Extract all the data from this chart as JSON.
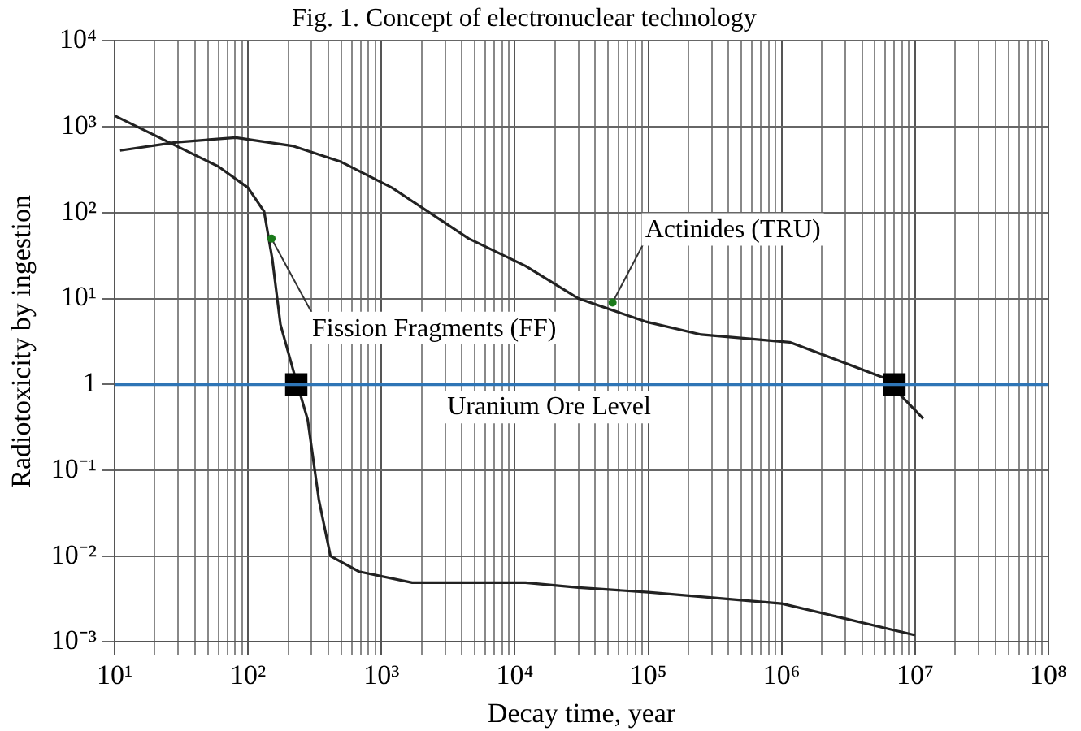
{
  "chart_data": {
    "type": "line",
    "title": "Fig. 1. Concept of electronuclear technology",
    "xlabel": "Decay time, year",
    "ylabel": "Radiotoxicity by ingestion",
    "log": "xy",
    "grid": true,
    "legend": false,
    "marker": "none",
    "line_style": "solid",
    "xlim": [
      10,
      100000000
    ],
    "ylim": [
      0.001,
      10000
    ],
    "xticks": [
      {
        "value": 10,
        "label": "10¹"
      },
      {
        "value": 20,
        "label": null
      },
      {
        "value": 30,
        "label": null
      },
      {
        "value": 40,
        "label": null
      },
      {
        "value": 50,
        "label": null
      },
      {
        "value": 60,
        "label": null
      },
      {
        "value": 70,
        "label": null
      },
      {
        "value": 80,
        "label": null
      },
      {
        "value": 90,
        "label": null
      },
      {
        "value": 100,
        "label": "10²"
      },
      {
        "value": 200,
        "label": null
      },
      {
        "value": 300,
        "label": null
      },
      {
        "value": 400,
        "label": null
      },
      {
        "value": 500,
        "label": null
      },
      {
        "value": 600,
        "label": null
      },
      {
        "value": 700,
        "label": null
      },
      {
        "value": 800,
        "label": null
      },
      {
        "value": 900,
        "label": null
      },
      {
        "value": 1000,
        "label": "10³"
      },
      {
        "value": 2000,
        "label": null
      },
      {
        "value": 3000,
        "label": null
      },
      {
        "value": 4000,
        "label": null
      },
      {
        "value": 5000,
        "label": null
      },
      {
        "value": 6000,
        "label": null
      },
      {
        "value": 7000,
        "label": null
      },
      {
        "value": 8000,
        "label": null
      },
      {
        "value": 9000,
        "label": null
      },
      {
        "value": 10000,
        "label": "10⁴"
      },
      {
        "value": 20000,
        "label": null
      },
      {
        "value": 30000,
        "label": null
      },
      {
        "value": 40000,
        "label": null
      },
      {
        "value": 50000,
        "label": null
      },
      {
        "value": 60000,
        "label": null
      },
      {
        "value": 70000,
        "label": null
      },
      {
        "value": 80000,
        "label": null
      },
      {
        "value": 90000,
        "label": null
      },
      {
        "value": 100000,
        "label": "10⁵"
      },
      {
        "value": 200000,
        "label": null
      },
      {
        "value": 300000,
        "label": null
      },
      {
        "value": 400000,
        "label": null
      },
      {
        "value": 500000,
        "label": null
      },
      {
        "value": 600000,
        "label": null
      },
      {
        "value": 700000,
        "label": null
      },
      {
        "value": 800000,
        "label": null
      },
      {
        "value": 900000,
        "label": null
      },
      {
        "value": 1000000,
        "label": "10⁶"
      },
      {
        "value": 2000000,
        "label": null
      },
      {
        "value": 3000000,
        "label": null
      },
      {
        "value": 4000000,
        "label": null
      },
      {
        "value": 5000000,
        "label": null
      },
      {
        "value": 6000000,
        "label": null
      },
      {
        "value": 7000000,
        "label": null
      },
      {
        "value": 8000000,
        "label": null
      },
      {
        "value": 9000000,
        "label": null
      },
      {
        "value": 10000000,
        "label": "10⁷"
      },
      {
        "value": 20000000,
        "label": null
      },
      {
        "value": 30000000,
        "label": null
      },
      {
        "value": 40000000,
        "label": null
      },
      {
        "value": 50000000,
        "label": null
      },
      {
        "value": 60000000,
        "label": null
      },
      {
        "value": 70000000,
        "label": null
      },
      {
        "value": 80000000,
        "label": null
      },
      {
        "value": 90000000,
        "label": null
      },
      {
        "value": 100000000,
        "label": "10⁸"
      }
    ],
    "yticks": [
      {
        "value": 0.001,
        "label": "10⁻³"
      },
      {
        "value": 0.01,
        "label": "10⁻²"
      },
      {
        "value": 0.1,
        "label": "10⁻¹"
      },
      1,
      {
        "value": 10,
        "label": "10¹"
      },
      {
        "value": 100,
        "label": "10²"
      },
      {
        "value": 1000,
        "label": "10³"
      },
      {
        "value": 10000,
        "label": "10⁴"
      }
    ],
    "series": [
      {
        "color": "#222222",
        "x": [
          10,
          29,
          60,
          100,
          132,
          152,
          175,
          220,
          280,
          340,
          415,
          680,
          1700,
          12000,
          30000,
          100000,
          1000000,
          10000000
        ],
        "values": [
          1350,
          600,
          345,
          195,
          103,
          29,
          5,
          1.4,
          0.39,
          0.045,
          0.01,
          0.0066,
          0.0049,
          0.0049,
          0.0043,
          0.0038,
          0.0028,
          0.0012
        ]
      },
      {
        "color": "#222222",
        "x": [
          11,
          29,
          81,
          215,
          500,
          1200,
          4500,
          12000,
          30000,
          95000,
          250000,
          1150000,
          5800000,
          11500000
        ],
        "values": [
          530,
          660,
          750,
          600,
          390,
          195,
          50,
          24,
          10,
          5.4,
          3.8,
          3.1,
          1.2,
          0.4
        ]
      },
      {
        "type": "scatter",
        "marker": "square",
        "color": "#000000",
        "x": [
          230,
          7000000
        ],
        "values": [
          1,
          1
        ]
      }
    ],
    "ref_lines": [
      {
        "axis": "y",
        "value": 1,
        "label": "Uranium Ore Level",
        "color": "#2e75b6"
      }
    ],
    "annotations": [
      {
        "text": "Fission Fragments (FF)",
        "x": 150,
        "y": 50
      },
      {
        "text": "Actinides (TRU)",
        "x": 54000,
        "y": 9
      }
    ]
  }
}
